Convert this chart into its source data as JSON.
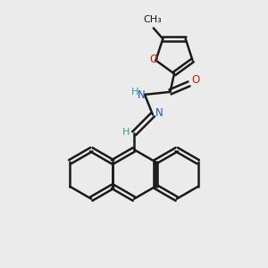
{
  "bg_color": "#ebebeb",
  "bond_color": "#1a1a1a",
  "N_color": "#1a5cbf",
  "O_color": "#cc2200",
  "H_color": "#3a9a8a",
  "bond_width": 1.8,
  "figsize": [
    3.0,
    3.0
  ],
  "dpi": 100,
  "xlim": [
    0,
    10
  ],
  "ylim": [
    0,
    10
  ]
}
